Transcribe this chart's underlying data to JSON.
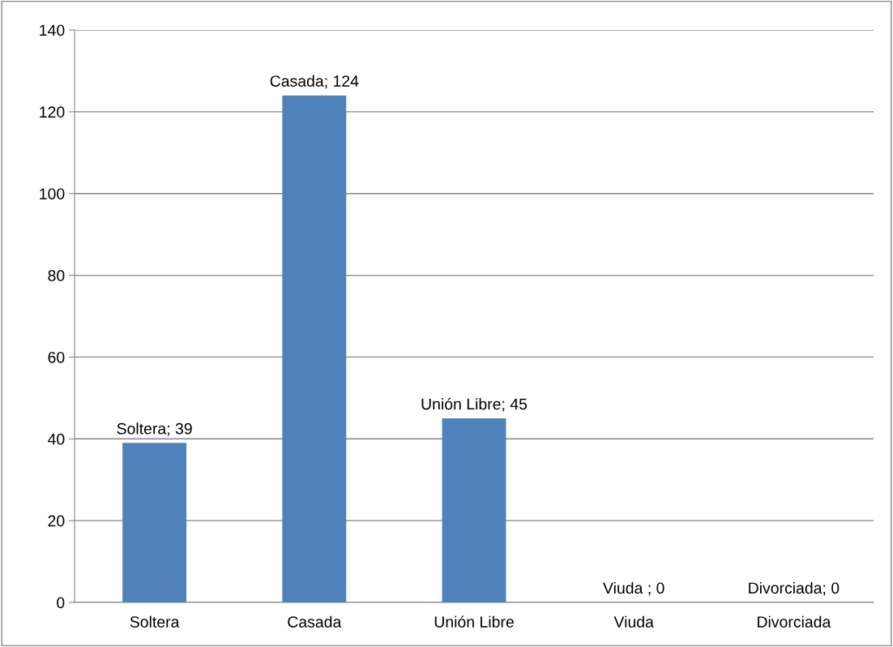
{
  "chart_data": {
    "type": "bar",
    "categories": [
      "Soltera",
      "Casada",
      "Unión Libre",
      "Viuda",
      "Divorciada"
    ],
    "values": [
      39,
      124,
      45,
      0,
      0
    ],
    "value_labels": [
      "Soltera; 39",
      "Casada; 124",
      "Unión Libre; 45",
      "Viuda ; 0",
      "Divorciada; 0"
    ],
    "color": "#4f81bd",
    "ylim": [
      0,
      140
    ],
    "yticks": [
      0,
      20,
      40,
      60,
      80,
      100,
      120,
      140
    ],
    "grid": "y",
    "legend": false
  }
}
